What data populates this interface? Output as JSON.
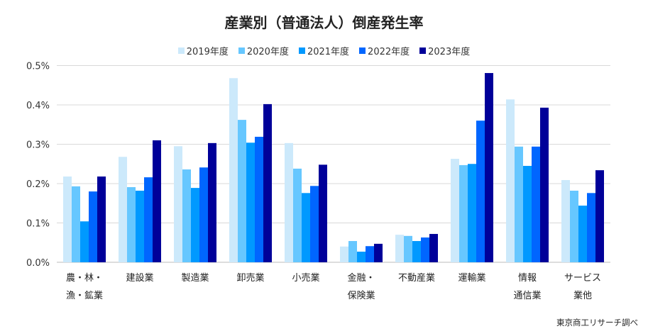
{
  "title": "産業別（普通法人）倒産発生率",
  "source": "東京商工リサーチ調べ",
  "colors": [
    "#cce9fb",
    "#66c7ff",
    "#0099ff",
    "#0066ff",
    "#000099"
  ],
  "chart_data": {
    "type": "bar",
    "title": "産業別（普通法人）倒産発生率",
    "xlabel": "",
    "ylabel": "",
    "ylim": [
      0,
      0.5
    ],
    "yticks": [
      "0.0%",
      "0.1%",
      "0.2%",
      "0.3%",
      "0.4%",
      "0.5%"
    ],
    "grid": true,
    "legend_position": "top-center",
    "categories": [
      [
        "農・林・",
        "漁・鉱業"
      ],
      [
        "建設業"
      ],
      [
        "製造業"
      ],
      [
        "卸売業"
      ],
      [
        "小売業"
      ],
      [
        "金融・",
        "保険業"
      ],
      [
        "不動産業"
      ],
      [
        "運輸業"
      ],
      [
        "情報",
        "通信業"
      ],
      [
        "サービス",
        "業他"
      ]
    ],
    "series": [
      {
        "name": "2019年度",
        "values": [
          0.218,
          0.268,
          0.295,
          0.468,
          0.303,
          0.04,
          0.07,
          0.263,
          0.414,
          0.209
        ]
      },
      {
        "name": "2020年度",
        "values": [
          0.193,
          0.191,
          0.236,
          0.362,
          0.238,
          0.054,
          0.067,
          0.247,
          0.294,
          0.182
        ]
      },
      {
        "name": "2021年度",
        "values": [
          0.104,
          0.182,
          0.189,
          0.304,
          0.176,
          0.027,
          0.054,
          0.25,
          0.245,
          0.144
        ]
      },
      {
        "name": "2022年度",
        "values": [
          0.18,
          0.216,
          0.241,
          0.319,
          0.194,
          0.041,
          0.063,
          0.36,
          0.294,
          0.176
        ]
      },
      {
        "name": "2023年度",
        "values": [
          0.218,
          0.31,
          0.303,
          0.402,
          0.248,
          0.047,
          0.072,
          0.481,
          0.393,
          0.234
        ]
      }
    ]
  }
}
